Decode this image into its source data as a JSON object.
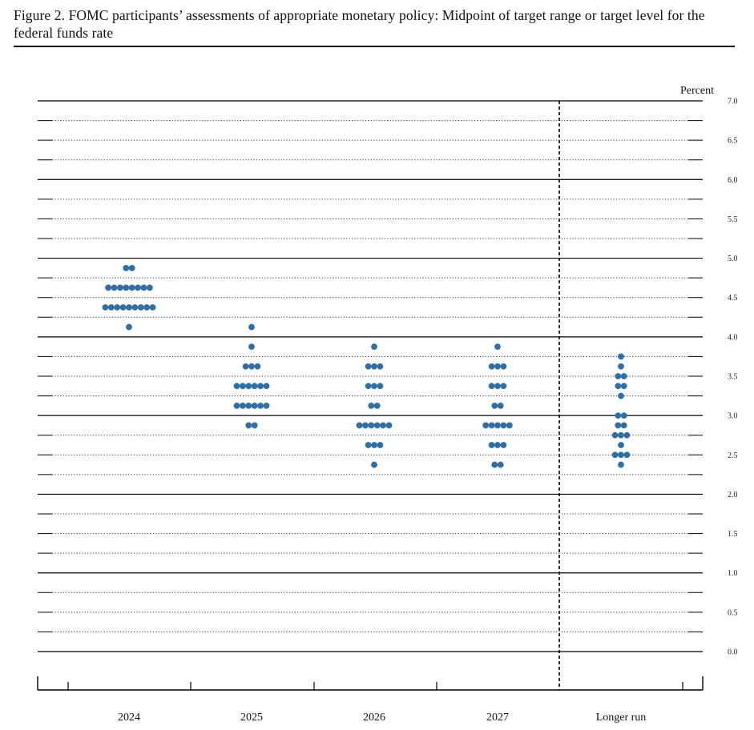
{
  "figure": {
    "title": "Figure 2.  FOMC participants’ assessments of appropriate monetary policy: Midpoint of target range or target level for the federal funds rate"
  },
  "chart_data": {
    "type": "scatter",
    "title": "Figure 2.  FOMC participants’ assessments of appropriate monetary policy: Midpoint of target range or target level for the federal funds rate",
    "ylabel": "Percent",
    "xlabel": "",
    "categories": [
      "2024",
      "2025",
      "2026",
      "2027",
      "Longer run"
    ],
    "ylim": [
      0,
      7
    ],
    "yticks": [
      "0.0",
      "0.5",
      "1.0",
      "1.5",
      "2.0",
      "2.5",
      "3.0",
      "3.5",
      "4.0",
      "4.5",
      "5.0",
      "5.5",
      "6.0",
      "6.5",
      "7.0"
    ],
    "grid": "solid at whole percents, dotted at every 0.25",
    "longer_run_separator": "dashed vertical line",
    "dot_color": "#2e6fa8",
    "dots": [
      {
        "category": "2024",
        "values": [
          {
            "rate": 4.875,
            "count": 2
          },
          {
            "rate": 4.625,
            "count": 8
          },
          {
            "rate": 4.375,
            "count": 9
          },
          {
            "rate": 4.125,
            "count": 1
          }
        ]
      },
      {
        "category": "2025",
        "values": [
          {
            "rate": 4.125,
            "count": 1
          },
          {
            "rate": 3.875,
            "count": 1
          },
          {
            "rate": 3.625,
            "count": 3
          },
          {
            "rate": 3.375,
            "count": 6
          },
          {
            "rate": 3.125,
            "count": 6
          },
          {
            "rate": 2.875,
            "count": 2
          }
        ]
      },
      {
        "category": "2026",
        "values": [
          {
            "rate": 3.875,
            "count": 1
          },
          {
            "rate": 3.625,
            "count": 3
          },
          {
            "rate": 3.375,
            "count": 3
          },
          {
            "rate": 3.125,
            "count": 2
          },
          {
            "rate": 2.875,
            "count": 6
          },
          {
            "rate": 2.625,
            "count": 3
          },
          {
            "rate": 2.375,
            "count": 1
          }
        ]
      },
      {
        "category": "2027",
        "values": [
          {
            "rate": 3.875,
            "count": 1
          },
          {
            "rate": 3.625,
            "count": 3
          },
          {
            "rate": 3.375,
            "count": 3
          },
          {
            "rate": 3.125,
            "count": 2
          },
          {
            "rate": 2.875,
            "count": 5
          },
          {
            "rate": 2.625,
            "count": 3
          },
          {
            "rate": 2.375,
            "count": 2
          }
        ]
      },
      {
        "category": "Longer run",
        "values": [
          {
            "rate": 3.75,
            "count": 1
          },
          {
            "rate": 3.625,
            "count": 1
          },
          {
            "rate": 3.5,
            "count": 2
          },
          {
            "rate": 3.375,
            "count": 2
          },
          {
            "rate": 3.25,
            "count": 1
          },
          {
            "rate": 3.0,
            "count": 2
          },
          {
            "rate": 2.875,
            "count": 2
          },
          {
            "rate": 2.75,
            "count": 3
          },
          {
            "rate": 2.625,
            "count": 1
          },
          {
            "rate": 2.5,
            "count": 3
          },
          {
            "rate": 2.375,
            "count": 1
          }
        ]
      }
    ]
  }
}
